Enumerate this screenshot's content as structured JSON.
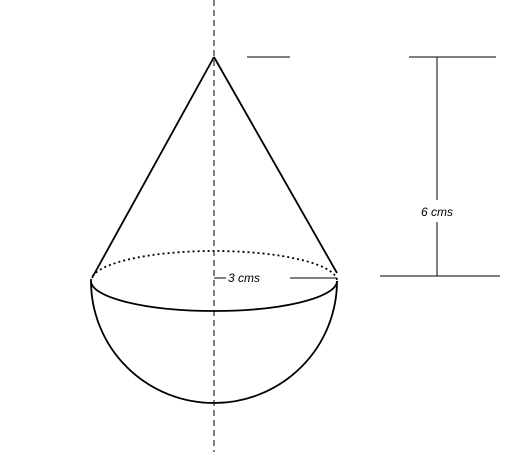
{
  "diagram": {
    "radius_label": "3 cms",
    "height_label": "6 cms",
    "colors": {
      "line": "#000000",
      "background": "#ffffff"
    }
  }
}
